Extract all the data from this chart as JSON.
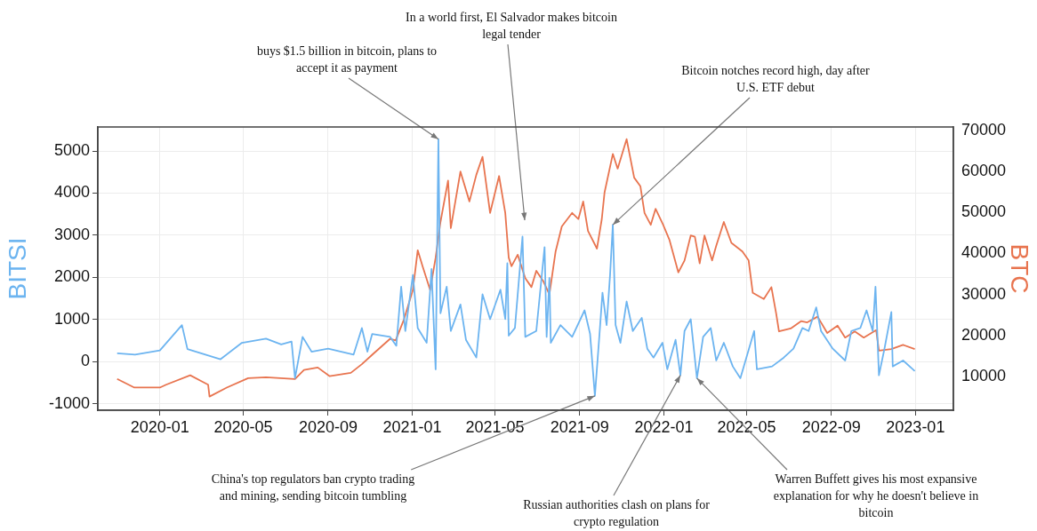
{
  "chart_data": {
    "type": "line",
    "ylabel": "BITSI",
    "y2label": "BTC",
    "xlim": [
      "2019-10-03",
      "2023-02-25"
    ],
    "xticks": [
      "2020-01",
      "2020-05",
      "2020-09",
      "2021-01",
      "2021-05",
      "2021-09",
      "2022-01",
      "2022-05",
      "2022-09",
      "2023-01"
    ],
    "ylim": [
      -1150,
      5570
    ],
    "yticks": [
      -1000,
      0,
      1000,
      2000,
      3000,
      4000,
      5000
    ],
    "y2lim": [
      1770,
      70870
    ],
    "y2ticks": [
      10000,
      20000,
      30000,
      40000,
      50000,
      60000,
      70000
    ],
    "grid": true,
    "legend": false,
    "marker": "none",
    "line_style": "solid",
    "series": [
      {
        "color": "#6cb4f0",
        "x": [
          "2019-10-31",
          "2019-11-26",
          "2020-01-01",
          "2020-02-02",
          "2020-02-10",
          "2020-03-29",
          "2020-04-29",
          "2020-06-03",
          "2020-06-25",
          "2020-07-10",
          "2020-07-15",
          "2020-07-26",
          "2020-08-08",
          "2020-09-01",
          "2020-10-08",
          "2020-10-20",
          "2020-10-28",
          "2020-11-04",
          "2020-11-30",
          "2020-12-09",
          "2020-12-16",
          "2020-12-22",
          "2021-01-02",
          "2021-01-09",
          "2021-01-22",
          "2021-01-29",
          "2021-02-04",
          "2021-02-08",
          "2021-02-11",
          "2021-02-20",
          "2021-02-26",
          "2021-03-12",
          "2021-03-20",
          "2021-04-04",
          "2021-04-13",
          "2021-04-24",
          "2021-05-09",
          "2021-05-16",
          "2021-05-19",
          "2021-05-21",
          "2021-05-30",
          "2021-06-10",
          "2021-06-14",
          "2021-06-30",
          "2021-07-12",
          "2021-07-15",
          "2021-07-19",
          "2021-07-21",
          "2021-08-04",
          "2021-08-21",
          "2021-09-08",
          "2021-09-16",
          "2021-09-23",
          "2021-09-30",
          "2021-10-04",
          "2021-10-10",
          "2021-10-15",
          "2021-10-19",
          "2021-10-23",
          "2021-10-30",
          "2021-11-08",
          "2021-11-17",
          "2021-11-30",
          "2021-12-08",
          "2021-12-17",
          "2021-12-30",
          "2022-01-06",
          "2022-01-18",
          "2022-01-25",
          "2022-01-31",
          "2022-02-09",
          "2022-02-18",
          "2022-02-27",
          "2022-03-10",
          "2022-03-18",
          "2022-03-29",
          "2022-04-11",
          "2022-04-22",
          "2022-05-12",
          "2022-05-16",
          "2022-06-07",
          "2022-06-24",
          "2022-07-08",
          "2022-07-21",
          "2022-07-30",
          "2022-08-10",
          "2022-08-17",
          "2022-09-03",
          "2022-09-21",
          "2022-09-30",
          "2022-10-13",
          "2022-10-22",
          "2022-10-31",
          "2022-11-04",
          "2022-11-09",
          "2022-11-17",
          "2022-11-27",
          "2022-11-29",
          "2022-12-14",
          "2022-12-31"
        ],
        "values": [
          200,
          170,
          270,
          870,
          300,
          60,
          450,
          550,
          410,
          480,
          -390,
          590,
          240,
          310,
          170,
          800,
          240,
          660,
          590,
          380,
          1780,
          730,
          2060,
          800,
          450,
          2200,
          -180,
          5280,
          1150,
          1780,
          730,
          1360,
          520,
          100,
          1600,
          1010,
          1710,
          1010,
          2340,
          620,
          800,
          2970,
          590,
          730,
          2720,
          590,
          1990,
          450,
          870,
          590,
          1220,
          660,
          -810,
          730,
          1640,
          870,
          2060,
          3250,
          870,
          450,
          1430,
          730,
          1040,
          310,
          100,
          450,
          -180,
          520,
          -320,
          730,
          1010,
          -390,
          590,
          800,
          30,
          450,
          -110,
          -390,
          730,
          -180,
          -110,
          100,
          310,
          800,
          730,
          1290,
          730,
          310,
          30,
          730,
          800,
          1220,
          730,
          1780,
          -320,
          310,
          1180,
          -110,
          30,
          -220
        ]
      },
      {
        "color": "#e8744f",
        "axis": "y2",
        "x": [
          "2019-10-31",
          "2019-11-25",
          "2020-01-01",
          "2020-01-10",
          "2020-02-14",
          "2020-03-03",
          "2020-03-11",
          "2020-03-13",
          "2020-04-07",
          "2020-05-08",
          "2020-06-03",
          "2020-07-15",
          "2020-07-28",
          "2020-08-17",
          "2020-09-03",
          "2020-10-04",
          "2020-10-20",
          "2020-11-04",
          "2020-11-30",
          "2020-12-08",
          "2020-12-20",
          "2021-01-02",
          "2021-01-09",
          "2021-01-16",
          "2021-01-27",
          "2021-02-04",
          "2021-02-11",
          "2021-02-22",
          "2021-02-26",
          "2021-03-12",
          "2021-03-25",
          "2021-04-04",
          "2021-04-13",
          "2021-04-24",
          "2021-05-07",
          "2021-05-16",
          "2021-05-21",
          "2021-05-25",
          "2021-06-03",
          "2021-06-14",
          "2021-06-23",
          "2021-06-30",
          "2021-07-10",
          "2021-07-19",
          "2021-07-28",
          "2021-08-06",
          "2021-08-21",
          "2021-08-30",
          "2021-09-06",
          "2021-09-13",
          "2021-09-26",
          "2021-10-03",
          "2021-10-07",
          "2021-10-19",
          "2021-10-26",
          "2021-11-08",
          "2021-11-19",
          "2021-11-28",
          "2021-12-04",
          "2021-12-13",
          "2021-12-20",
          "2021-12-31",
          "2022-01-09",
          "2022-01-22",
          "2022-01-31",
          "2022-02-09",
          "2022-02-15",
          "2022-02-22",
          "2022-03-01",
          "2022-03-12",
          "2022-03-18",
          "2022-03-29",
          "2022-04-09",
          "2022-04-25",
          "2022-05-04",
          "2022-05-10",
          "2022-05-26",
          "2022-06-06",
          "2022-06-13",
          "2022-06-17",
          "2022-07-04",
          "2022-07-19",
          "2022-07-28",
          "2022-08-12",
          "2022-08-26",
          "2022-09-10",
          "2022-09-21",
          "2022-10-05",
          "2022-10-18",
          "2022-11-05",
          "2022-11-09",
          "2022-11-27",
          "2022-12-14",
          "2022-12-31"
        ],
        "values": [
          9400,
          7300,
          7300,
          8000,
          10300,
          8700,
          8000,
          5100,
          7300,
          9600,
          9800,
          9400,
          11600,
          12200,
          10100,
          10900,
          13000,
          15300,
          19200,
          18800,
          23900,
          31100,
          40800,
          36900,
          31100,
          39000,
          47700,
          57800,
          46200,
          60000,
          52700,
          59200,
          63600,
          49900,
          58900,
          49900,
          39000,
          36900,
          39700,
          34000,
          31800,
          35800,
          33300,
          30000,
          40500,
          46600,
          49900,
          48400,
          52700,
          45500,
          41200,
          48400,
          54900,
          64300,
          60700,
          67900,
          58500,
          56400,
          49900,
          47000,
          50900,
          47000,
          43400,
          35400,
          38300,
          44400,
          44100,
          37600,
          44400,
          38300,
          41900,
          47700,
          42600,
          40500,
          38300,
          30400,
          28900,
          31800,
          25300,
          21000,
          21700,
          23500,
          23200,
          24600,
          20600,
          22400,
          19500,
          21000,
          19500,
          21300,
          16300,
          16700,
          17700,
          16700
        ]
      }
    ],
    "annotations": [
      {
        "text": "buys $1.5 billion in bitcoin, plans to accept it as payment",
        "x": "2021-02-08",
        "y": 5280
      },
      "In a world first, El Salvador makes bitcoin legal tender",
      {
        "text": "Bitcoin notches record high, day after U.S. ETF debut",
        "x": "2021-10-19",
        "y": 3250
      },
      {
        "text": "China's top regulators ban crypto trading and mining, sending bitcoin tumbling",
        "x": "2021-09-23",
        "y": -810
      },
      {
        "text": "Russian authorities clash on plans for crypto regulation",
        "x": "2022-01-25",
        "y": -320
      },
      {
        "text": "Warren Buffett gives his most expansive explanation for why he doesn't believe in bitcoin",
        "x": "2022-02-18",
        "y": -390
      }
    ]
  }
}
